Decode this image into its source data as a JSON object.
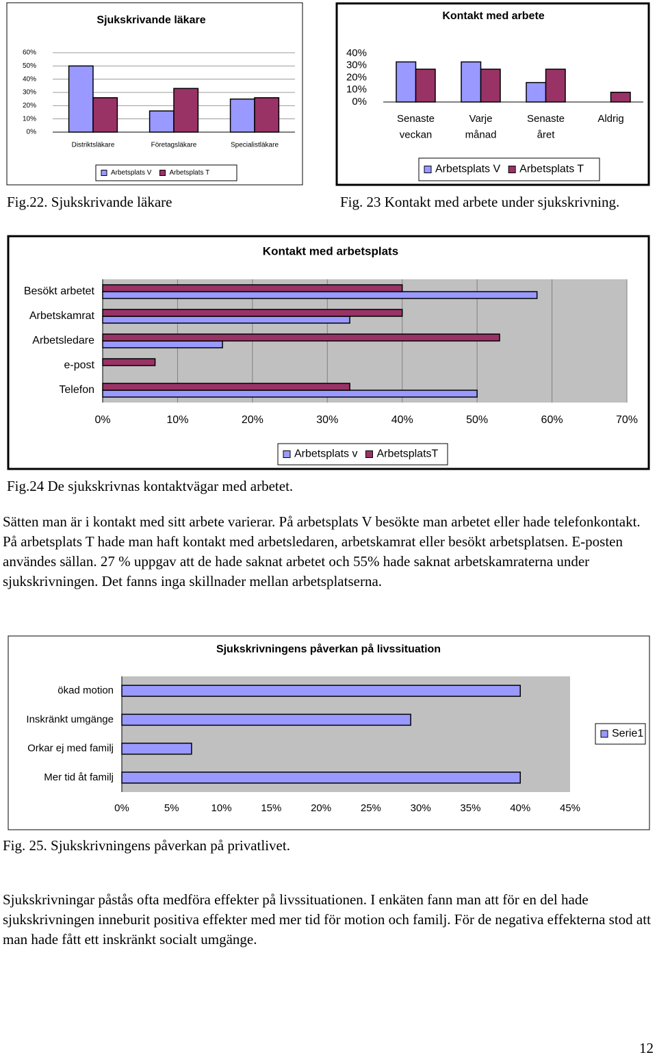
{
  "chart_data": [
    {
      "type": "bar",
      "orientation": "vertical",
      "title": "Sjukskrivande läkare",
      "categories": [
        "Distriktsläkare",
        "Företagsläkare",
        "Specialistläkare"
      ],
      "series": [
        {
          "name": "Arbetsplats V",
          "color": "#9999ff",
          "values": [
            50,
            16,
            25
          ]
        },
        {
          "name": "Arbetsplats T",
          "color": "#993366",
          "values": [
            26,
            33,
            26
          ]
        }
      ],
      "ylim": [
        0,
        60
      ],
      "yticks": [
        {
          "value": 0,
          "label": "0%"
        },
        {
          "value": 10,
          "label": "10%"
        },
        {
          "value": 20,
          "label": "20%"
        },
        {
          "value": 30,
          "label": "30%"
        },
        {
          "value": 40,
          "label": "40%"
        },
        {
          "value": 50,
          "label": "50%"
        },
        {
          "value": 60,
          "label": "60%"
        }
      ],
      "grid": true,
      "legend": "bottom"
    },
    {
      "type": "bar",
      "orientation": "vertical",
      "title": "Kontakt med arbete",
      "categories": [
        "Senaste veckan",
        "Varje månad",
        "Senaste året",
        "Aldrig"
      ],
      "series": [
        {
          "name": "Arbetsplats V",
          "color": "#9999ff",
          "values": [
            33,
            33,
            16,
            0
          ]
        },
        {
          "name": "Arbetsplats T",
          "color": "#993366",
          "values": [
            27,
            27,
            27,
            8
          ]
        }
      ],
      "ylim": [
        0,
        40
      ],
      "yticks": [
        {
          "value": 0,
          "label": "0%"
        },
        {
          "value": 10,
          "label": "10%"
        },
        {
          "value": 20,
          "label": "20%"
        },
        {
          "value": 30,
          "label": "30%"
        },
        {
          "value": 40,
          "label": "40%"
        }
      ],
      "grid": false,
      "legend": "bottom"
    },
    {
      "type": "bar",
      "orientation": "horizontal",
      "title": "Kontakt med arbetsplats",
      "categories": [
        "Besökt arbetet",
        "Arbetskamrat",
        "Arbetsledare",
        "e-post",
        "Telefon"
      ],
      "series": [
        {
          "name": "Arbetsplats v",
          "color": "#9999ff",
          "values": [
            58,
            33,
            16,
            0,
            50
          ]
        },
        {
          "name": "ArbetsplatsT",
          "color": "#993366",
          "values": [
            40,
            40,
            53,
            7,
            33
          ]
        }
      ],
      "xlim": [
        0,
        70
      ],
      "xticks": [
        {
          "value": 0,
          "label": "0%"
        },
        {
          "value": 10,
          "label": "10%"
        },
        {
          "value": 20,
          "label": "20%"
        },
        {
          "value": 30,
          "label": "30%"
        },
        {
          "value": 40,
          "label": "40%"
        },
        {
          "value": 50,
          "label": "50%"
        },
        {
          "value": 60,
          "label": "60%"
        },
        {
          "value": 70,
          "label": "70%"
        }
      ],
      "grid": true,
      "legend": "bottom"
    },
    {
      "type": "bar",
      "orientation": "horizontal",
      "title": "Sjukskrivningens påverkan på livssituation",
      "categories": [
        "ökad motion",
        "Inskränkt umgänge",
        "Orkar ej med familj",
        "Mer tid åt familj"
      ],
      "series": [
        {
          "name": "Serie1",
          "color": "#9999ff",
          "values": [
            40,
            29,
            7,
            40
          ]
        }
      ],
      "xlim": [
        0,
        45
      ],
      "xticks": [
        {
          "value": 0,
          "label": "0%"
        },
        {
          "value": 5,
          "label": "5%"
        },
        {
          "value": 10,
          "label": "10%"
        },
        {
          "value": 15,
          "label": "15%"
        },
        {
          "value": 20,
          "label": "20%"
        },
        {
          "value": 25,
          "label": "25%"
        },
        {
          "value": 30,
          "label": "30%"
        },
        {
          "value": 35,
          "label": "35%"
        },
        {
          "value": 40,
          "label": "40%"
        },
        {
          "value": 45,
          "label": "45%"
        }
      ],
      "grid": false,
      "legend": "right"
    }
  ],
  "captions": [
    "Fig.22. Sjukskrivande läkare",
    "Fig. 23 Kontakt med arbete under sjukskrivning.",
    "Fig.24 De sjukskrivnas kontaktvägar med arbetet.",
    "Fig. 25. Sjukskrivningens påverkan på privatlivet."
  ],
  "paragraphs": [
    "Sätten man är i kontakt med sitt arbete varierar. På arbetsplats V besökte man arbetet eller hade telefonkontakt. På arbetsplats T hade man haft kontakt med arbetsledaren, arbetskamrat eller besökt arbetsplatsen. E-posten användes sällan. 27 % uppgav att de hade saknat arbetet och 55% hade saknat arbetskamraterna under sjukskrivningen. Det fanns inga skillnader mellan arbetsplatserna.",
    "Sjukskrivningar påstås ofta medföra effekter på livssituationen. I enkäten fann man att för en del hade sjukskrivningen inneburit positiva effekter med mer tid för motion och familj. För de negativa effekterna stod att man hade fått ett inskränkt socialt umgänge."
  ],
  "page_number": "12"
}
